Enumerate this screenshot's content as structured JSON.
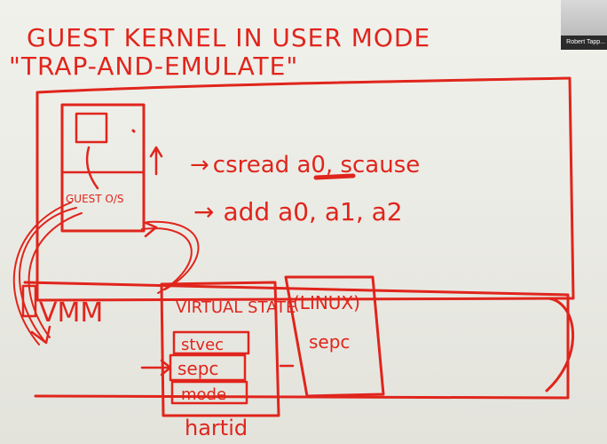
{
  "whiteboard": {
    "title": "GUEST KERNEL IN USER MODE",
    "subtitle": "\"TRAP-AND-EMULATE\"",
    "instructions": [
      {
        "arrow": "→",
        "text": "csread a0, scause"
      },
      {
        "arrow": "→",
        "text": "add a0, a1, a2"
      }
    ],
    "guest_os_label": "GUEST O/S",
    "vmm_label": "VMM",
    "virtual_state_label": "VIRTUAL STATE",
    "state_fields": [
      "stvec",
      "sepc",
      "mode"
    ],
    "linux_label": "(LINUX)",
    "linux_field": "sepc",
    "hartid_label": "hartid",
    "ink_color": "#e0251c"
  },
  "participant": {
    "name": "Robert Tapp..."
  }
}
